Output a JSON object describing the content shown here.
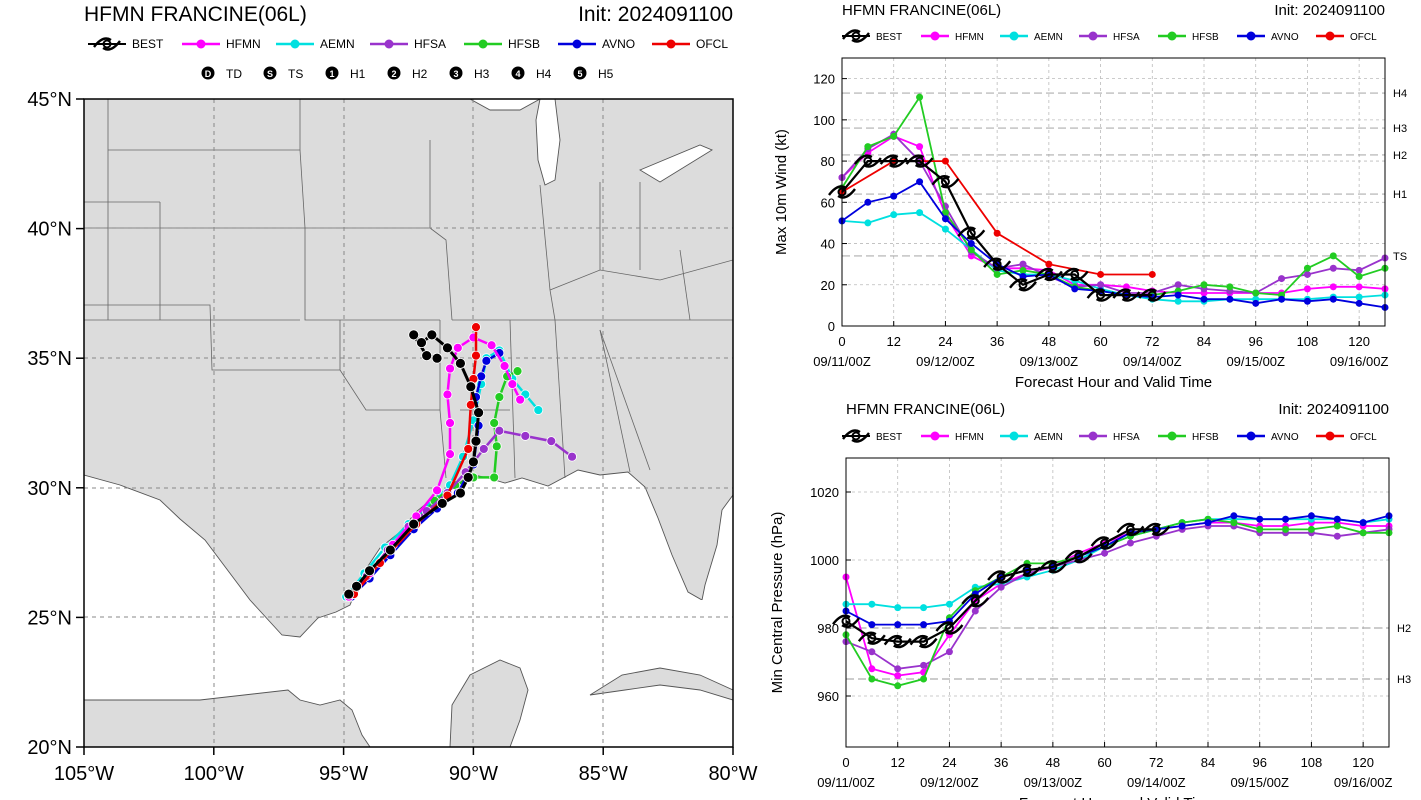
{
  "colors": {
    "BEST": "#000000",
    "HFMN": "#ff00ff",
    "AEMN": "#00e0e0",
    "HFSA": "#9933cc",
    "HFSB": "#22cc22",
    "AVNO": "#0000dd",
    "OFCL": "#ee0000",
    "land": "#dcdcdc",
    "water": "#ffffff",
    "border": "#555555"
  },
  "legend_models": [
    "BEST",
    "HFMN",
    "AEMN",
    "HFSA",
    "HFSB",
    "AVNO",
    "OFCL"
  ],
  "map": {
    "title": "HFMN FRANCINE(06L)",
    "init": "Init: 2024091100",
    "intensity_legend": [
      {
        "symbol": "D",
        "label": "TD"
      },
      {
        "symbol": "S",
        "label": "TS"
      },
      {
        "symbol": "1",
        "label": "H1"
      },
      {
        "symbol": "2",
        "label": "H2"
      },
      {
        "symbol": "3",
        "label": "H3"
      },
      {
        "symbol": "4",
        "label": "H4"
      },
      {
        "symbol": "5",
        "label": "H5"
      }
    ],
    "lat_ticks": [
      "45°N",
      "40°N",
      "35°N",
      "30°N",
      "25°N",
      "20°N"
    ],
    "lon_ticks": [
      "105°W",
      "100°W",
      "95°W",
      "90°W",
      "85°W",
      "80°W"
    ],
    "lat_range": [
      20,
      45
    ],
    "lon_range": [
      -105,
      -80
    ],
    "tracks": {
      "AEMN": [
        [
          -94.9,
          25.8
        ],
        [
          -94.2,
          26.7
        ],
        [
          -93.4,
          27.7
        ],
        [
          -92.5,
          28.6
        ],
        [
          -91.7,
          29.3
        ],
        [
          -90.9,
          30.1
        ],
        [
          -90.4,
          31.2
        ],
        [
          -90.0,
          32.6
        ],
        [
          -89.7,
          34.0
        ],
        [
          -89.5,
          35.0
        ],
        [
          -89.0,
          35.3
        ],
        [
          -88.5,
          34.2
        ],
        [
          -88.0,
          33.6
        ],
        [
          -87.5,
          33.0
        ]
      ],
      "HFSB": [
        [
          -94.8,
          25.8
        ],
        [
          -94.1,
          26.6
        ],
        [
          -93.3,
          27.5
        ],
        [
          -92.4,
          28.5
        ],
        [
          -91.5,
          29.5
        ],
        [
          -90.7,
          30.1
        ],
        [
          -90.0,
          30.4
        ],
        [
          -89.2,
          30.4
        ],
        [
          -89.1,
          31.6
        ],
        [
          -89.2,
          32.5
        ],
        [
          -89.0,
          33.5
        ],
        [
          -88.7,
          34.3
        ],
        [
          -88.3,
          34.5
        ]
      ],
      "AVNO": [
        [
          -94.7,
          25.8
        ],
        [
          -94.0,
          26.5
        ],
        [
          -93.2,
          27.4
        ],
        [
          -92.3,
          28.4
        ],
        [
          -91.4,
          29.2
        ],
        [
          -90.6,
          29.8
        ],
        [
          -90.0,
          30.9
        ],
        [
          -89.8,
          32.4
        ],
        [
          -89.9,
          33.5
        ],
        [
          -89.7,
          34.3
        ],
        [
          -89.5,
          34.9
        ],
        [
          -89.0,
          35.2
        ]
      ],
      "HFSA": [
        [
          -94.8,
          25.8
        ],
        [
          -94.1,
          26.6
        ],
        [
          -93.3,
          27.6
        ],
        [
          -92.5,
          28.5
        ],
        [
          -91.8,
          29.1
        ],
        [
          -91.0,
          29.8
        ],
        [
          -90.3,
          30.6
        ],
        [
          -89.6,
          31.5
        ],
        [
          -89.0,
          32.2
        ],
        [
          -88.0,
          32.0
        ],
        [
          -87.0,
          31.8
        ],
        [
          -86.2,
          31.2
        ]
      ],
      "HFMN": [
        [
          -94.8,
          25.8
        ],
        [
          -94.0,
          26.7
        ],
        [
          -93.1,
          27.8
        ],
        [
          -92.2,
          28.9
        ],
        [
          -91.4,
          29.9
        ],
        [
          -90.9,
          31.3
        ],
        [
          -90.9,
          32.5
        ],
        [
          -91.0,
          33.6
        ],
        [
          -90.9,
          34.6
        ],
        [
          -90.6,
          35.4
        ],
        [
          -90.0,
          35.8
        ],
        [
          -89.3,
          35.5
        ],
        [
          -88.8,
          34.7
        ],
        [
          -88.5,
          34.0
        ],
        [
          -88.2,
          33.4
        ]
      ],
      "OFCL": [
        [
          -94.6,
          25.9
        ],
        [
          -93.6,
          27.1
        ],
        [
          -92.2,
          28.6
        ],
        [
          -91.0,
          29.7
        ],
        [
          -90.2,
          31.5
        ],
        [
          -90.1,
          33.2
        ],
        [
          -90.0,
          34.2
        ],
        [
          -89.9,
          35.1
        ],
        [
          -89.9,
          36.2
        ]
      ],
      "BEST": [
        [
          -94.8,
          25.9
        ],
        [
          -94.5,
          26.2
        ],
        [
          -94.0,
          26.8
        ],
        [
          -93.2,
          27.6
        ],
        [
          -92.3,
          28.6
        ],
        [
          -91.2,
          29.4
        ],
        [
          -90.5,
          29.8
        ],
        [
          -90.2,
          30.4
        ],
        [
          -90.0,
          31.0
        ],
        [
          -89.9,
          31.8
        ],
        [
          -89.8,
          32.9
        ],
        [
          -90.1,
          33.9
        ],
        [
          -90.5,
          34.8
        ],
        [
          -91.0,
          35.4
        ],
        [
          -91.6,
          35.9
        ],
        [
          -92.0,
          35.6
        ],
        [
          -92.3,
          35.9
        ],
        [
          -91.8,
          35.1
        ],
        [
          -91.4,
          35.0
        ]
      ]
    }
  },
  "wind_panel": {
    "title": "HFMN FRANCINE(06L)",
    "init": "Init: 2024091100",
    "chart_data": {
      "type": "line",
      "ylabel": "Max 10m Wind (kt)",
      "xlabel": "Forecast Hour and Valid Time",
      "xlim": [
        0,
        126
      ],
      "ylim": [
        0,
        130
      ],
      "x_ticks": [
        0,
        12,
        24,
        36,
        48,
        60,
        72,
        84,
        96,
        108,
        120
      ],
      "y_ticks": [
        0,
        20,
        40,
        60,
        80,
        100,
        120
      ],
      "date_labels": [
        {
          "x": 0,
          "label": "09/11/00Z"
        },
        {
          "x": 24,
          "label": "09/12/00Z"
        },
        {
          "x": 48,
          "label": "09/13/00Z"
        },
        {
          "x": 72,
          "label": "09/14/00Z"
        },
        {
          "x": 96,
          "label": "09/15/00Z"
        },
        {
          "x": 120,
          "label": "09/16/00Z"
        }
      ],
      "category_lines": [
        {
          "label": "TS",
          "value": 34
        },
        {
          "label": "H1",
          "value": 64
        },
        {
          "label": "H2",
          "value": 83
        },
        {
          "label": "H3",
          "value": 96
        },
        {
          "label": "H4",
          "value": 113
        }
      ],
      "series": [
        {
          "name": "HFMN",
          "x": [
            0,
            6,
            12,
            18,
            24,
            30,
            36,
            42,
            48,
            54,
            60,
            66,
            72,
            78,
            84,
            90,
            96,
            102,
            108,
            114,
            120,
            126
          ],
          "values": [
            72,
            84,
            92,
            87,
            54,
            34,
            28,
            28,
            27,
            20,
            20,
            19,
            17,
            16,
            16,
            16,
            16,
            16,
            18,
            19,
            19,
            18
          ]
        },
        {
          "name": "AEMN",
          "x": [
            0,
            6,
            12,
            18,
            24,
            30,
            36,
            42,
            48,
            54,
            60,
            66,
            72,
            78,
            84,
            90,
            96,
            102,
            108,
            114,
            120,
            126
          ],
          "values": [
            51,
            50,
            54,
            55,
            47,
            37,
            27,
            25,
            25,
            22,
            18,
            15,
            13,
            12,
            12,
            13,
            13,
            13,
            13,
            14,
            14,
            15
          ]
        },
        {
          "name": "HFSA",
          "x": [
            0,
            6,
            12,
            18,
            24,
            30,
            36,
            42,
            48,
            54,
            60,
            66,
            72,
            78,
            84,
            90,
            96,
            102,
            108,
            114,
            120,
            126
          ],
          "values": [
            72,
            86,
            93,
            80,
            58,
            36,
            28,
            30,
            24,
            19,
            20,
            16,
            16,
            20,
            18,
            17,
            16,
            23,
            25,
            28,
            27,
            33
          ]
        },
        {
          "name": "HFSB",
          "x": [
            0,
            6,
            12,
            18,
            24,
            30,
            36,
            42,
            48,
            54,
            60,
            66,
            72,
            78,
            84,
            90,
            96,
            102,
            108,
            114,
            120,
            126
          ],
          "values": [
            67,
            87,
            92,
            111,
            55,
            37,
            25,
            27,
            25,
            19,
            17,
            15,
            15,
            17,
            20,
            19,
            16,
            15,
            28,
            34,
            24,
            28
          ]
        },
        {
          "name": "AVNO",
          "x": [
            0,
            6,
            12,
            18,
            24,
            30,
            36,
            42,
            48,
            54,
            60,
            66,
            72,
            78,
            84,
            90,
            96,
            102,
            108,
            114,
            120,
            126
          ],
          "values": [
            51,
            60,
            63,
            70,
            52,
            40,
            30,
            24,
            25,
            18,
            17,
            15,
            14,
            15,
            13,
            13,
            11,
            13,
            12,
            13,
            11,
            9
          ]
        },
        {
          "name": "OFCL",
          "x": [
            0,
            12,
            24,
            36,
            48,
            60,
            72
          ],
          "values": [
            65,
            80,
            80,
            45,
            30,
            25,
            25
          ]
        },
        {
          "name": "BEST",
          "x": [
            0,
            6,
            12,
            18,
            24,
            30,
            36,
            42,
            48,
            54,
            60,
            66,
            72
          ],
          "values": [
            65,
            80,
            80,
            80,
            70,
            45,
            30,
            20,
            25,
            25,
            15,
            15,
            15
          ]
        }
      ]
    }
  },
  "pressure_panel": {
    "title": "HFMN FRANCINE(06L)",
    "init": "Init: 2024091100",
    "chart_data": {
      "type": "line",
      "ylabel": "Min Central Pressure (hPa)",
      "xlabel": "Forecast Hour and Valid Time",
      "xlim": [
        0,
        126
      ],
      "ylim": [
        945,
        1030
      ],
      "x_ticks": [
        0,
        12,
        24,
        36,
        48,
        60,
        72,
        84,
        96,
        108,
        120
      ],
      "y_ticks": [
        960,
        980,
        1000,
        1020
      ],
      "date_labels": [
        {
          "x": 0,
          "label": "09/11/00Z"
        },
        {
          "x": 24,
          "label": "09/12/00Z"
        },
        {
          "x": 48,
          "label": "09/13/00Z"
        },
        {
          "x": 72,
          "label": "09/14/00Z"
        },
        {
          "x": 96,
          "label": "09/15/00Z"
        },
        {
          "x": 120,
          "label": "09/16/00Z"
        }
      ],
      "category_lines": [
        {
          "label": "H2",
          "value": 980
        },
        {
          "label": "H3",
          "value": 965
        }
      ],
      "series": [
        {
          "name": "HFMN",
          "x": [
            0,
            6,
            12,
            18,
            24,
            30,
            36,
            42,
            48,
            54,
            60,
            66,
            72,
            78,
            84,
            90,
            96,
            102,
            108,
            114,
            120,
            126
          ],
          "values": [
            995,
            968,
            966,
            967,
            978,
            988,
            993,
            996,
            998,
            1002,
            1005,
            1008,
            1009,
            1010,
            1011,
            1011,
            1010,
            1010,
            1011,
            1011,
            1010,
            1010
          ]
        },
        {
          "name": "AEMN",
          "x": [
            0,
            6,
            12,
            18,
            24,
            30,
            36,
            42,
            48,
            54,
            60,
            66,
            72,
            78,
            84,
            90,
            96,
            102,
            108,
            114,
            120,
            126
          ],
          "values": [
            987,
            987,
            986,
            986,
            987,
            992,
            993,
            995,
            997,
            1000,
            1004,
            1007,
            1009,
            1011,
            1012,
            1012,
            1012,
            1012,
            1012,
            1012,
            1011,
            1012
          ]
        },
        {
          "name": "HFSA",
          "x": [
            0,
            6,
            12,
            18,
            24,
            30,
            36,
            42,
            48,
            54,
            60,
            66,
            72,
            78,
            84,
            90,
            96,
            102,
            108,
            114,
            120,
            126
          ],
          "values": [
            976,
            973,
            968,
            969,
            973,
            985,
            992,
            996,
            998,
            1000,
            1002,
            1005,
            1007,
            1009,
            1010,
            1010,
            1008,
            1008,
            1008,
            1007,
            1008,
            1009
          ]
        },
        {
          "name": "HFSB",
          "x": [
            0,
            6,
            12,
            18,
            24,
            30,
            36,
            42,
            48,
            54,
            60,
            66,
            72,
            78,
            84,
            90,
            96,
            102,
            108,
            114,
            120,
            126
          ],
          "values": [
            978,
            965,
            963,
            965,
            983,
            991,
            995,
            999,
            999,
            1001,
            1004,
            1007,
            1009,
            1011,
            1012,
            1011,
            1009,
            1009,
            1009,
            1010,
            1008,
            1008
          ]
        },
        {
          "name": "AVNO",
          "x": [
            0,
            6,
            12,
            18,
            24,
            30,
            36,
            42,
            48,
            54,
            60,
            66,
            72,
            78,
            84,
            90,
            96,
            102,
            108,
            114,
            120,
            126
          ],
          "values": [
            985,
            981,
            981,
            981,
            982,
            990,
            995,
            997,
            998,
            1001,
            1004,
            1008,
            1009,
            1010,
            1011,
            1013,
            1012,
            1012,
            1013,
            1012,
            1011,
            1013
          ]
        },
        {
          "name": "BEST",
          "x": [
            0,
            6,
            12,
            18,
            24,
            30,
            36,
            42,
            48,
            54,
            60,
            66,
            72
          ],
          "values": [
            982,
            977,
            976,
            976,
            980,
            988,
            995,
            997,
            998,
            1001,
            1005,
            1009,
            1009
          ]
        }
      ]
    }
  }
}
